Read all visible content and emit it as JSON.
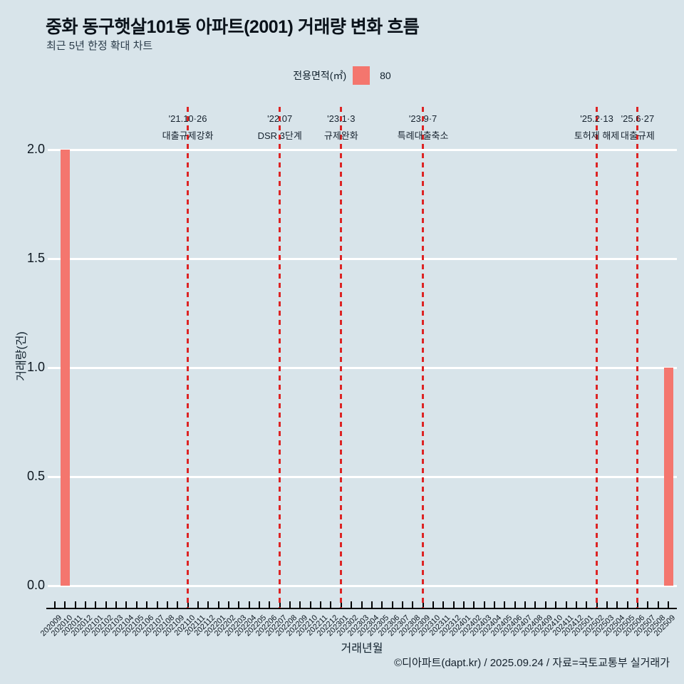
{
  "footer": "©디아파트(dapt.kr) / 2025.09.24 / 자료=국토교통부 실거래가",
  "chart_data": {
    "type": "bar",
    "title": "중화 동구햇살101동 아파트(2001) 거래량 변화 흐름",
    "subtitle": "최근 5년 한정 확대 차트",
    "xlabel": "거래년월",
    "ylabel": "거래량(건)",
    "ylim": [
      0,
      2.0
    ],
    "grid": "horizontal-white",
    "legend_position": "top-center",
    "legend": {
      "label": "전용면적(㎡)",
      "value": "80"
    },
    "colors": {
      "background": "#d8e4ea",
      "bar": "#f4766e",
      "event_line": "#dd2424",
      "grid": "#ffffff"
    },
    "yticks": [
      "0.0",
      "0.5",
      "1.0",
      "1.5",
      "2.0"
    ],
    "categories": [
      "202009",
      "202010",
      "202011",
      "202012",
      "202101",
      "202102",
      "202103",
      "202104",
      "202105",
      "202106",
      "202107",
      "202108",
      "202109",
      "202110",
      "202111",
      "202112",
      "202201",
      "202202",
      "202203",
      "202204",
      "202205",
      "202206",
      "202207",
      "202208",
      "202209",
      "202210",
      "202211",
      "202212",
      "202301",
      "202302",
      "202303",
      "202304",
      "202305",
      "202306",
      "202307",
      "202308",
      "202309",
      "202310",
      "202311",
      "202312",
      "202401",
      "202402",
      "202403",
      "202404",
      "202405",
      "202406",
      "202407",
      "202408",
      "202409",
      "202410",
      "202411",
      "202412",
      "202501",
      "202502",
      "202503",
      "202504",
      "202505",
      "202506",
      "202507",
      "202508",
      "202509"
    ],
    "values": [
      null,
      2,
      null,
      null,
      null,
      null,
      null,
      null,
      null,
      null,
      null,
      null,
      null,
      null,
      null,
      null,
      null,
      null,
      null,
      null,
      null,
      null,
      null,
      null,
      null,
      null,
      null,
      null,
      null,
      null,
      null,
      null,
      null,
      null,
      null,
      null,
      null,
      null,
      null,
      null,
      null,
      null,
      null,
      null,
      null,
      null,
      null,
      null,
      null,
      null,
      null,
      null,
      null,
      null,
      null,
      null,
      null,
      null,
      null,
      null,
      1
    ],
    "annotations": [
      {
        "month": "202110",
        "date": "'21.10·26",
        "label": "대출규제강화"
      },
      {
        "month": "202207",
        "date": "'22.07",
        "label": "DSR 3단계"
      },
      {
        "month": "202301",
        "date": "'23.1·3",
        "label": "규제완화"
      },
      {
        "month": "202309",
        "date": "'23.9·7",
        "label": "특례대출축소"
      },
      {
        "month": "202502",
        "date": "'25.2·13",
        "label": "토허제 해제"
      },
      {
        "month": "202506",
        "date": "'25.6·27",
        "label": "대출규제"
      }
    ]
  }
}
